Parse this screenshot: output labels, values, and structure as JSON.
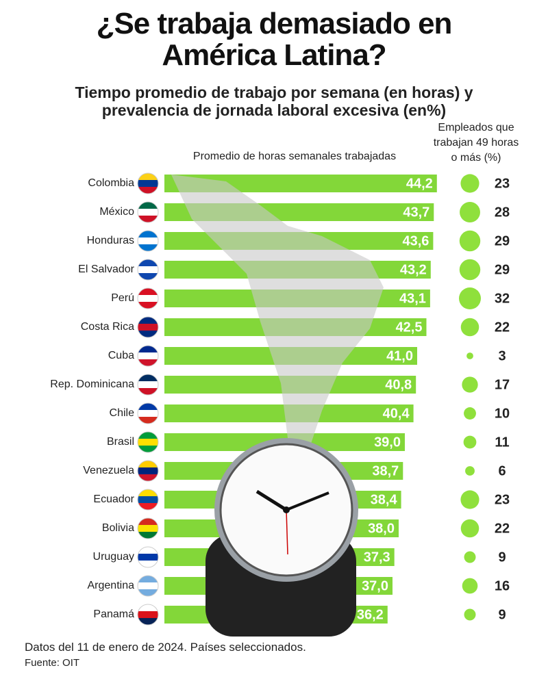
{
  "chart_data": {
    "type": "bar",
    "title": "¿Se trabaja demasiado en América Latina?",
    "subtitle": "Tiempo promedio de trabajo por semana (en horas) y prevalencia de jornada laboral excesiva (en%)",
    "categories": [
      "Colombia",
      "México",
      "Honduras",
      "El Salvador",
      "Perú",
      "Costa Rica",
      "Cuba",
      "Rep. Dominicana",
      "Chile",
      "Brasil",
      "Venezuela",
      "Ecuador",
      "Bolivia",
      "Uruguay",
      "Argentina",
      "Panamá"
    ],
    "series": [
      {
        "name": "Promedio de horas semanales trabajadas",
        "color": "#72d11e",
        "values": [
          44.2,
          43.7,
          43.6,
          43.2,
          43.1,
          42.5,
          41.0,
          40.8,
          40.4,
          39.0,
          38.7,
          38.4,
          38.0,
          37.3,
          37.0,
          36.2
        ],
        "value_labels": [
          "44,2",
          "43,7",
          "43,6",
          "43,2",
          "43,1",
          "42,5",
          "41,0",
          "40,8",
          "40,4",
          "39,0",
          "38,7",
          "38,4",
          "38,0",
          "37,3",
          "37,0",
          "36,2"
        ]
      },
      {
        "name": "Empleados que trabajan 49 horas o más (%)",
        "color": "#8fe03c",
        "values": [
          23,
          28,
          29,
          29,
          32,
          22,
          3,
          17,
          10,
          11,
          6,
          23,
          22,
          9,
          16,
          9
        ]
      }
    ],
    "xlim": [
      0,
      45
    ],
    "note": "Datos del 11 de enero de 2024. Países seleccionados.",
    "source": "Fuente: OIT"
  }
}
